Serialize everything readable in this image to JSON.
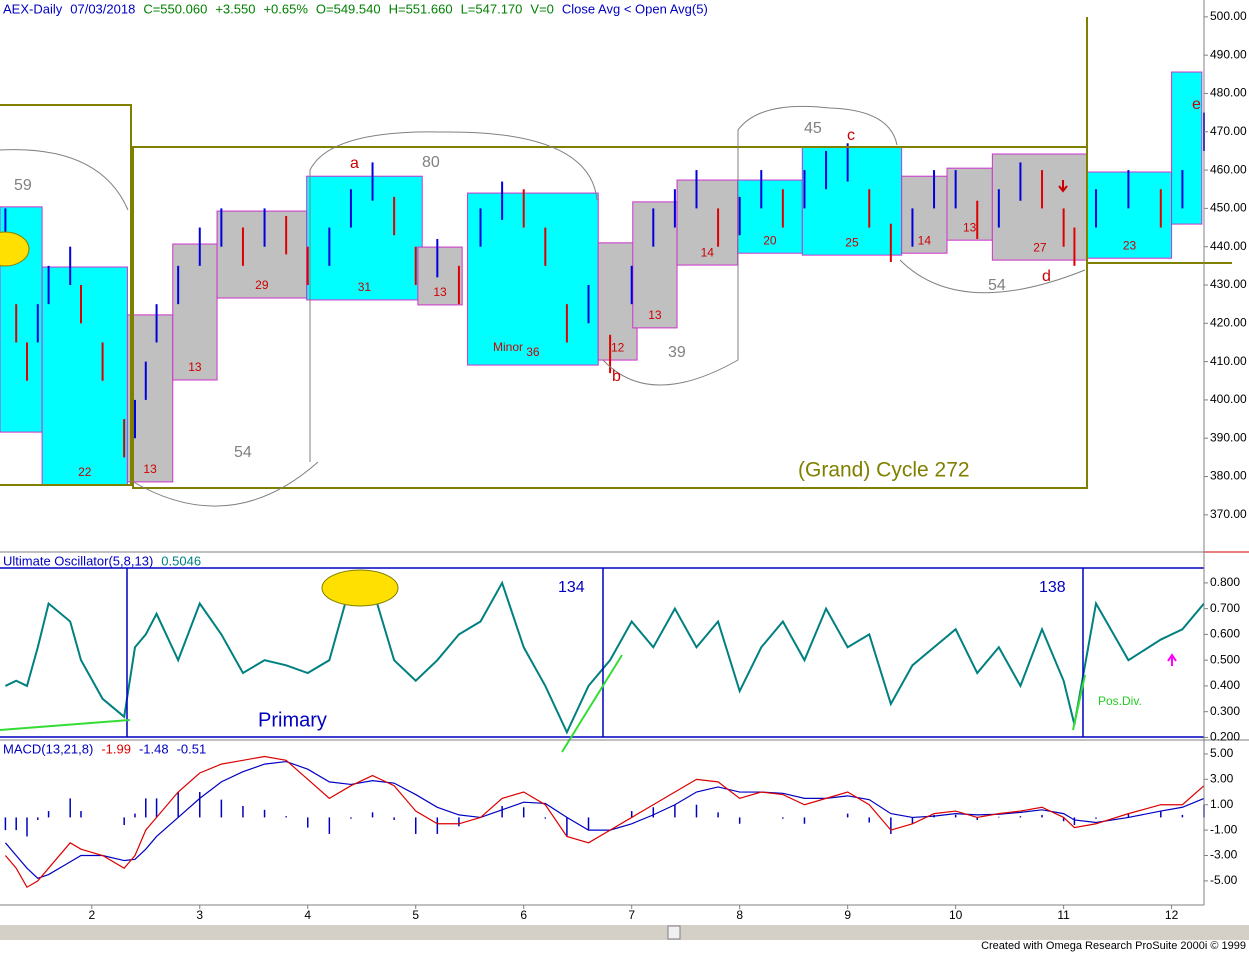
{
  "chart_data": [
    {
      "type": "ohlc",
      "header": [
        {
          "text": "AEX-Daily",
          "color": "#0000c0"
        },
        {
          "text": "07/03/2018",
          "color": "#0000c0"
        },
        {
          "text": "C=550.060",
          "color": "#008000"
        },
        {
          "text": "+3.550",
          "color": "#008000"
        },
        {
          "text": "+0.65%",
          "color": "#008000"
        },
        {
          "text": "O=549.540",
          "color": "#008000"
        },
        {
          "text": "H=551.660",
          "color": "#008000"
        },
        {
          "text": "L=547.170",
          "color": "#008000"
        },
        {
          "text": "V=0",
          "color": "#008000"
        },
        {
          "text": "Close Avg < Open Avg(5)",
          "color": "#0000c0"
        }
      ],
      "x": [
        1.2,
        1.3,
        1.4,
        1.5,
        1.6,
        1.8,
        1.9,
        2.1,
        2.3,
        2.4,
        2.5,
        2.6,
        2.8,
        3.0,
        3.2,
        3.4,
        3.6,
        3.8,
        4.0,
        4.2,
        4.4,
        4.6,
        4.8,
        5.0,
        5.2,
        5.4,
        5.6,
        5.8,
        6.0,
        6.2,
        6.4,
        6.6,
        6.8,
        7.0,
        7.2,
        7.4,
        7.6,
        7.8,
        8.0,
        8.2,
        8.4,
        8.6,
        8.8,
        9.0,
        9.2,
        9.4,
        9.6,
        9.8,
        10.0,
        10.2,
        10.4,
        10.6,
        10.8,
        11.0,
        11.1,
        11.3,
        11.6,
        11.9,
        12.1,
        12.3
      ],
      "series": [
        {
          "high": [
            450,
            425,
            415,
            425,
            435,
            440,
            430,
            415,
            395,
            400,
            410,
            425,
            435,
            445,
            450,
            445,
            450,
            448,
            440,
            445,
            455,
            462,
            453,
            440,
            442,
            435,
            450,
            457,
            455,
            445,
            425,
            430,
            417,
            435,
            450,
            455,
            460,
            450,
            453,
            460,
            455,
            460,
            465,
            467,
            455,
            446,
            450,
            460,
            460,
            452,
            455,
            462,
            460,
            450,
            445,
            455,
            460,
            455,
            460,
            475
          ],
          "low": [
            440,
            415,
            405,
            415,
            425,
            430,
            420,
            405,
            385,
            390,
            400,
            415,
            425,
            435,
            440,
            435,
            440,
            438,
            430,
            435,
            445,
            452,
            443,
            430,
            432,
            425,
            440,
            447,
            445,
            435,
            415,
            420,
            407,
            425,
            440,
            445,
            450,
            440,
            443,
            450,
            445,
            450,
            455,
            457,
            445,
            436,
            440,
            450,
            450,
            442,
            445,
            452,
            450,
            440,
            435,
            445,
            450,
            445,
            450,
            465
          ],
          "up_color": "#0000dd",
          "down_color": "#dd0000"
        }
      ],
      "xlim": [
        1.15,
        12.3
      ],
      "ylim": [
        360.3,
        504.4
      ],
      "yticks": [
        {
          "value": 500,
          "label": "500.00"
        },
        {
          "value": 490,
          "label": "490.00"
        },
        {
          "value": 480,
          "label": "480.00"
        },
        {
          "value": 470,
          "label": "470.00"
        },
        {
          "value": 460,
          "label": "460.00"
        },
        {
          "value": 450,
          "label": "450.00"
        },
        {
          "value": 440,
          "label": "440.00"
        },
        {
          "value": 430,
          "label": "430.00"
        },
        {
          "value": 420,
          "label": "420.00"
        },
        {
          "value": 410,
          "label": "410.00"
        },
        {
          "value": 400,
          "label": "400.00"
        },
        {
          "value": 390,
          "label": "390.00"
        },
        {
          "value": 380,
          "label": "380.00"
        },
        {
          "value": 370,
          "label": "370.00"
        }
      ],
      "boxes": [
        {
          "x": [
            1.15,
            1.54
          ],
          "y": [
            391.6,
            450.4
          ],
          "color": "#00ffff"
        },
        {
          "x": [
            1.54,
            2.33
          ],
          "y": [
            377.8,
            434.7
          ],
          "color": "#00ffff",
          "label": "22"
        },
        {
          "x": [
            2.33,
            2.75
          ],
          "y": [
            378.6,
            422.2
          ],
          "color": "#c0c0c0",
          "label": "13"
        },
        {
          "x": [
            2.75,
            3.16
          ],
          "y": [
            405.2,
            440.7
          ],
          "color": "#c0c0c0",
          "label": "13"
        },
        {
          "x": [
            3.16,
            3.99
          ],
          "y": [
            426.6,
            449.3
          ],
          "color": "#c0c0c0",
          "label": "29"
        },
        {
          "x": [
            3.99,
            5.06
          ],
          "y": [
            426.1,
            458.4
          ],
          "color": "#00ffff",
          "label": "31"
        },
        {
          "x": [
            5.02,
            5.43
          ],
          "y": [
            424.8,
            439.9
          ],
          "color": "#c0c0c0",
          "label": "13"
        },
        {
          "x": [
            5.48,
            6.69
          ],
          "y": [
            409.1,
            454.0
          ],
          "color": "#00ffff",
          "label": "36"
        },
        {
          "x": [
            6.69,
            7.05
          ],
          "y": [
            410.4,
            441.0
          ],
          "color": "#c0c0c0",
          "label": "12"
        },
        {
          "x": [
            7.01,
            7.42
          ],
          "y": [
            418.8,
            451.7
          ],
          "color": "#c0c0c0",
          "label": "13"
        },
        {
          "x": [
            7.42,
            7.98
          ],
          "y": [
            435.2,
            457.4
          ],
          "color": "#c0c0c0",
          "label": "14"
        },
        {
          "x": [
            7.98,
            8.58
          ],
          "y": [
            438.3,
            457.4
          ],
          "color": "#00ffff",
          "label": "20"
        },
        {
          "x": [
            8.58,
            9.5
          ],
          "y": [
            437.8,
            466.0
          ],
          "color": "#00ffff",
          "label": "25"
        },
        {
          "x": [
            9.5,
            9.92
          ],
          "y": [
            438.3,
            458.4
          ],
          "color": "#c0c0c0",
          "label": "14"
        },
        {
          "x": [
            9.92,
            10.34
          ],
          "y": [
            441.7,
            460.5
          ],
          "color": "#c0c0c0",
          "label": "13"
        },
        {
          "x": [
            10.34,
            11.22
          ],
          "y": [
            436.5,
            464.2
          ],
          "color": "#c0c0c0",
          "label": "27"
        },
        {
          "x": [
            11.22,
            12.0
          ],
          "y": [
            437.0,
            459.5
          ],
          "color": "#00ffff",
          "label": "23"
        },
        {
          "x": [
            12.0,
            12.28
          ],
          "y": [
            445.9,
            485.6
          ],
          "color": "#00ffff"
        }
      ],
      "annotations": [
        "59",
        "54",
        "80",
        "a",
        "45",
        "c",
        "39",
        "b",
        "54",
        "d",
        "e",
        "(Grand) Cycle 272",
        "Minor"
      ]
    },
    {
      "type": "line",
      "header": [
        {
          "text": "Ultimate Oscillator(5,8,13)",
          "color": "#0000c0"
        },
        {
          "text": "0.5046",
          "color": "#008080"
        }
      ],
      "x": [
        1.2,
        1.3,
        1.4,
        1.5,
        1.6,
        1.8,
        1.9,
        2.1,
        2.3,
        2.4,
        2.5,
        2.6,
        2.8,
        3.0,
        3.2,
        3.4,
        3.6,
        3.8,
        4.0,
        4.2,
        4.4,
        4.6,
        4.8,
        5.0,
        5.2,
        5.4,
        5.6,
        5.8,
        6.0,
        6.2,
        6.4,
        6.6,
        6.8,
        7.0,
        7.2,
        7.4,
        7.6,
        7.8,
        8.0,
        8.2,
        8.4,
        8.6,
        8.8,
        9.0,
        9.2,
        9.4,
        9.6,
        9.8,
        10.0,
        10.2,
        10.4,
        10.6,
        10.8,
        11.0,
        11.1,
        11.3,
        11.6,
        11.9,
        12.1,
        12.3
      ],
      "series": [
        {
          "color": "#008080",
          "values": [
            0.4,
            0.42,
            0.4,
            0.55,
            0.72,
            0.65,
            0.5,
            0.35,
            0.28,
            0.55,
            0.6,
            0.68,
            0.5,
            0.72,
            0.6,
            0.45,
            0.5,
            0.48,
            0.45,
            0.5,
            0.8,
            0.78,
            0.5,
            0.42,
            0.5,
            0.6,
            0.65,
            0.8,
            0.55,
            0.4,
            0.22,
            0.4,
            0.5,
            0.65,
            0.55,
            0.7,
            0.55,
            0.65,
            0.38,
            0.55,
            0.65,
            0.5,
            0.7,
            0.55,
            0.6,
            0.33,
            0.48,
            0.55,
            0.62,
            0.45,
            0.55,
            0.4,
            0.62,
            0.42,
            0.25,
            0.72,
            0.5,
            0.58,
            0.62,
            0.72
          ]
        }
      ],
      "xlim": [
        1.15,
        12.3
      ],
      "ylim": [
        0.19,
        0.92
      ],
      "yticks": [
        {
          "value": 0.8,
          "label": "0.800"
        },
        {
          "value": 0.7,
          "label": "0.700"
        },
        {
          "value": 0.6,
          "label": "0.600"
        },
        {
          "value": 0.5,
          "label": "0.500"
        },
        {
          "value": 0.4,
          "label": "0.400"
        },
        {
          "value": 0.3,
          "label": "0.300"
        },
        {
          "value": 0.2,
          "label": "0.200"
        }
      ],
      "annotations": [
        "134",
        "138",
        "Primary",
        "Pos.Div."
      ]
    },
    {
      "type": "macd",
      "header": [
        {
          "text": "MACD(13,21,8)",
          "color": "#0000c0"
        },
        {
          "text": "-1.99",
          "color": "#dd0000"
        },
        {
          "text": "-1.48",
          "color": "#0000c0"
        },
        {
          "text": "-0.51",
          "color": "#0000c0"
        }
      ],
      "x": [
        1.2,
        1.3,
        1.4,
        1.5,
        1.6,
        1.8,
        1.9,
        2.1,
        2.3,
        2.4,
        2.5,
        2.6,
        2.8,
        3.0,
        3.2,
        3.4,
        3.6,
        3.8,
        4.0,
        4.2,
        4.4,
        4.6,
        4.8,
        5.0,
        5.2,
        5.4,
        5.6,
        5.8,
        6.0,
        6.2,
        6.4,
        6.6,
        6.8,
        7.0,
        7.2,
        7.4,
        7.6,
        7.8,
        8.0,
        8.2,
        8.4,
        8.6,
        8.8,
        9.0,
        9.2,
        9.4,
        9.6,
        9.8,
        10.0,
        10.2,
        10.4,
        10.6,
        10.8,
        11.0,
        11.1,
        11.3,
        11.6,
        11.9,
        12.1,
        12.3
      ],
      "series": [
        {
          "style": "histogram",
          "color": "#0000c0",
          "values": [
            -1,
            -1,
            -1.5,
            -0.2,
            0.5,
            1.5,
            0.5,
            0,
            -0.6,
            0.3,
            1.5,
            1.5,
            2,
            2,
            1.4,
            0.9,
            0.6,
            0.1,
            -0.8,
            -1.3,
            -0.1,
            0.4,
            -0.2,
            -1.3,
            -1.3,
            -0.7,
            0,
            0.9,
            0.8,
            -0.1,
            -1.5,
            -1,
            0,
            0.5,
            0.8,
            1,
            1,
            0.4,
            -0.5,
            0,
            -0.1,
            -0.5,
            0,
            0.3,
            -0.4,
            -1.3,
            -0.5,
            0.2,
            0.2,
            -0.2,
            0.05,
            0.1,
            0.2,
            -0.3,
            -0.6,
            -0.1,
            0.3,
            0.5,
            0.2,
            1.0
          ]
        },
        {
          "style": "line",
          "color": "#0000c0",
          "values": [
            -2,
            -3,
            -4,
            -4.8,
            -4.5,
            -3.5,
            -3,
            -3,
            -3.4,
            -3.3,
            -2.5,
            -1.5,
            0,
            1.5,
            2.8,
            3.6,
            4.2,
            4.4,
            3.8,
            2.8,
            2.6,
            2.9,
            2.7,
            1.8,
            0.8,
            0.2,
            0,
            0.6,
            1.2,
            1.1,
            0,
            -1,
            -1,
            -0.5,
            0.2,
            1,
            2,
            2.4,
            2,
            2,
            1.9,
            1.5,
            1.5,
            1.7,
            1.4,
            0.3,
            0,
            0.1,
            0.3,
            0.2,
            0.25,
            0.4,
            0.6,
            0.3,
            -0.2,
            -0.4,
            0,
            0.5,
            0.8,
            1.5
          ]
        },
        {
          "style": "line",
          "color": "#dd0000",
          "values": [
            -3,
            -4,
            -5.5,
            -5,
            -4,
            -2,
            -2.5,
            -3,
            -4,
            -3,
            -1,
            0,
            2,
            3.5,
            4.2,
            4.5,
            4.8,
            4.5,
            3,
            1.5,
            2.5,
            3.3,
            2.5,
            0.5,
            -0.5,
            -0.5,
            0,
            1.5,
            2,
            1,
            -1.5,
            -2,
            -1,
            0,
            1,
            2,
            3,
            2.8,
            1.5,
            2,
            1.8,
            1,
            1.5,
            2,
            1,
            -1,
            -0.5,
            0.3,
            0.5,
            0,
            0.3,
            0.5,
            0.8,
            0,
            -0.8,
            -0.5,
            0.3,
            1,
            1,
            2.5
          ]
        }
      ],
      "xlim": [
        1.15,
        12.3
      ],
      "ylim": [
        -6.9,
        6.1
      ],
      "yticks": [
        {
          "value": 5,
          "label": "5.00"
        },
        {
          "value": 3,
          "label": "3.00"
        },
        {
          "value": 1,
          "label": "1.00"
        },
        {
          "value": -1,
          "label": "-1.00"
        },
        {
          "value": -3,
          "label": "-3.00"
        },
        {
          "value": -5,
          "label": "-5.00"
        }
      ],
      "xticks": [
        2,
        3,
        4,
        5,
        6,
        7,
        8,
        9,
        10,
        11,
        12
      ]
    }
  ],
  "footer": "Created with Omega Research ProSuite 2000i © 1999"
}
